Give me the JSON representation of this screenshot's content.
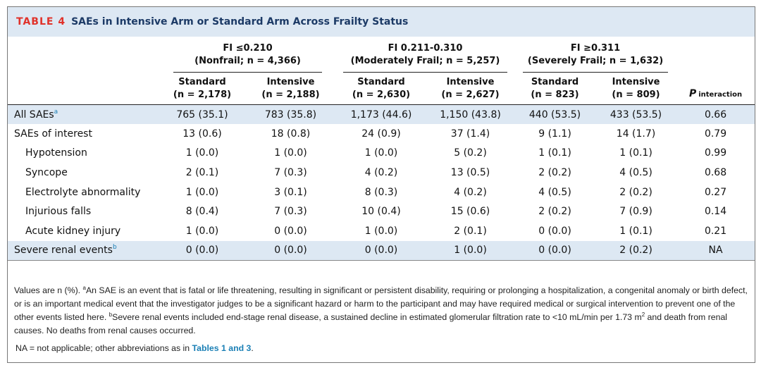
{
  "title": {
    "label": "TABLE 4",
    "text": "SAEs in Intensive Arm or Standard Arm Across Frailty Status"
  },
  "groups": [
    {
      "line1": "FI ≤0.210",
      "line2": "(Nonfrail; n = 4,366)"
    },
    {
      "line1": "FI 0.211-0.310",
      "line2": "(Moderately Frail; n = 5,257)"
    },
    {
      "line1": "FI ≥0.311",
      "line2": "(Severely Frail; n = 1,632)"
    }
  ],
  "arms": [
    {
      "name": "Standard",
      "n": "(n = 2,178)"
    },
    {
      "name": "Intensive",
      "n": "(n = 2,188)"
    },
    {
      "name": "Standard",
      "n": "(n = 2,630)"
    },
    {
      "name": "Intensive",
      "n": "(n = 2,627)"
    },
    {
      "name": "Standard",
      "n": "(n = 823)"
    },
    {
      "name": "Intensive",
      "n": "(n = 809)"
    }
  ],
  "p_header": {
    "p": "P",
    "sub": "interaction"
  },
  "rows": [
    {
      "label": "All SAEs",
      "sup": "a",
      "values": [
        "765 (35.1)",
        "783 (35.8)",
        "1,173 (44.6)",
        "1,150 (43.8)",
        "440 (53.5)",
        "433 (53.5)",
        "0.66"
      ]
    },
    {
      "label": "SAEs of interest",
      "sup": "",
      "values": [
        "13 (0.6)",
        "18 (0.8)",
        "24 (0.9)",
        "37 (1.4)",
        "9 (1.1)",
        "14 (1.7)",
        "0.79"
      ]
    },
    {
      "label": "Hypotension",
      "sup": "",
      "values": [
        "1 (0.0)",
        "1 (0.0)",
        "1 (0.0)",
        "5 (0.2)",
        "1 (0.1)",
        "1 (0.1)",
        "0.99"
      ]
    },
    {
      "label": "Syncope",
      "sup": "",
      "values": [
        "2 (0.1)",
        "7 (0.3)",
        "4 (0.2)",
        "13 (0.5)",
        "2 (0.2)",
        "4 (0.5)",
        "0.68"
      ]
    },
    {
      "label": "Electrolyte abnormality",
      "sup": "",
      "values": [
        "1 (0.0)",
        "3 (0.1)",
        "8 (0.3)",
        "4 (0.2)",
        "4 (0.5)",
        "2 (0.2)",
        "0.27"
      ]
    },
    {
      "label": "Injurious falls",
      "sup": "",
      "values": [
        "8 (0.4)",
        "7 (0.3)",
        "10 (0.4)",
        "15 (0.6)",
        "2 (0.2)",
        "7 (0.9)",
        "0.14"
      ]
    },
    {
      "label": "Acute kidney injury",
      "sup": "",
      "values": [
        "1 (0.0)",
        "0 (0.0)",
        "1 (0.0)",
        "2 (0.1)",
        "0 (0.0)",
        "1 (0.1)",
        "0.21"
      ]
    },
    {
      "label": "Severe renal events",
      "sup": "b",
      "values": [
        "0 (0.0)",
        "0 (0.0)",
        "0 (0.0)",
        "1 (0.0)",
        "0 (0.0)",
        "2 (0.2)",
        "NA"
      ]
    }
  ],
  "footnote": {
    "p1": "Values are n (%). ",
    "sup_a": "a",
    "p2": "An SAE is an event that is fatal or life threatening, resulting in significant or persistent disability, requiring or prolonging a hospitalization, a congenital anomaly or birth defect, or is an important medical event that the investigator judges to be a significant hazard or harm to the participant and may have required medical or surgical intervention to prevent one of the other events listed here. ",
    "sup_b": "b",
    "p3": "Severe renal events included end-stage renal disease, a sustained decline in estimated glomerular filtration rate to <10 mL/min per 1.73 m",
    "sup_2": "2",
    "p4": " and death from renal causes. No deaths from renal causes occurred.",
    "na_text": "NA = not applicable; other abbreviations as in ",
    "na_link": "Tables 1 and 3",
    "na_end": "."
  },
  "colors": {
    "header_bg": "#dde8f3",
    "table_label": "#e0322a",
    "title_text": "#1c3a66",
    "link": "#1a7fb5"
  }
}
